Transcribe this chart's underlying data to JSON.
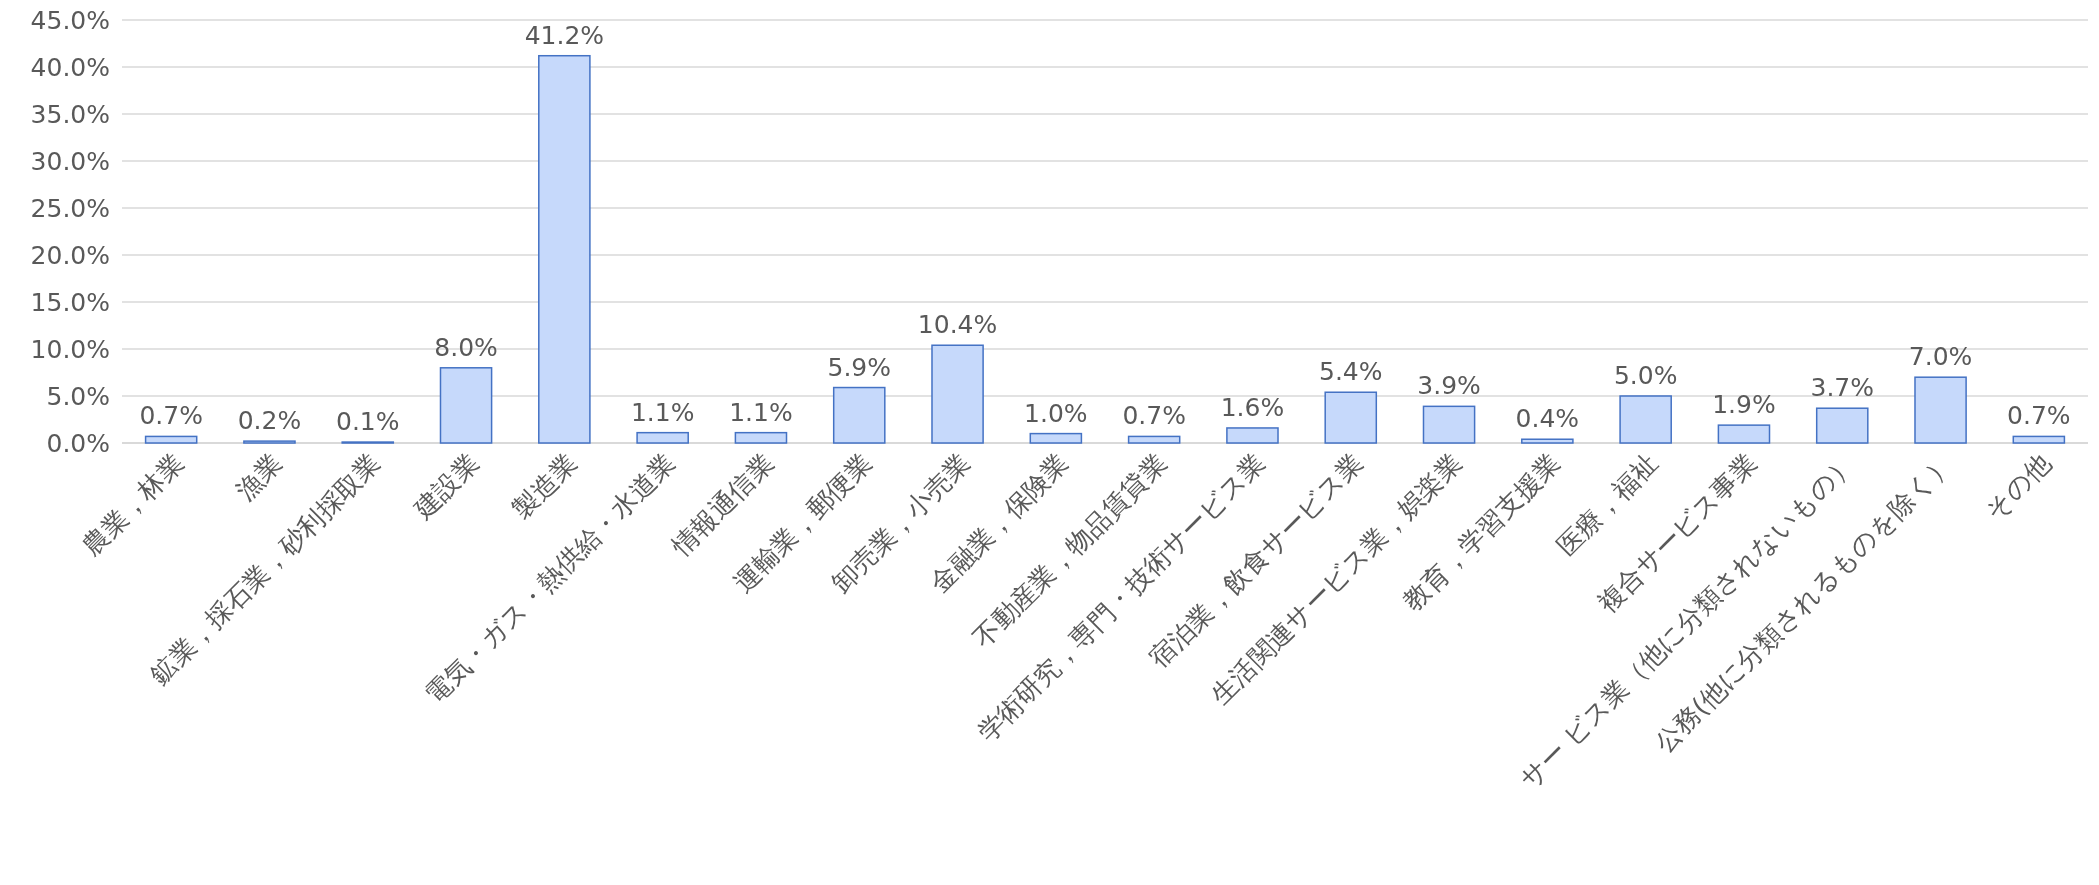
{
  "chart_data": {
    "type": "bar",
    "categories": [
      "農業，林業",
      "漁業",
      "鉱業，採石業，砂利採取業",
      "建設業",
      "製造業",
      "電気・ガス・熱供給・水道業",
      "情報通信業",
      "運輸業，郵便業",
      "卸売業，小売業",
      "金融業，保険業",
      "不動産業，物品賃貸業",
      "学術研究，専門・技術サービス業",
      "宿泊業，飲食サービス業",
      "生活関連サービス業，娯楽業",
      "教育，学習支援業",
      "医療，福祉",
      "複合サービス事業",
      "サー ビス業（他に分類されないもの）",
      "公務(他に分類されるものを除く）",
      "その他"
    ],
    "values": [
      0.7,
      0.2,
      0.1,
      8.0,
      41.2,
      1.1,
      1.1,
      5.9,
      10.4,
      1.0,
      0.7,
      1.6,
      5.4,
      3.9,
      0.4,
      5.0,
      1.9,
      3.7,
      7.0,
      0.7
    ],
    "value_labels": [
      "0.7%",
      "0.2%",
      "0.1%",
      "8.0%",
      "41.2%",
      "1.1%",
      "1.1%",
      "5.9%",
      "10.4%",
      "1.0%",
      "0.7%",
      "1.6%",
      "5.4%",
      "3.9%",
      "0.4%",
      "5.0%",
      "1.9%",
      "3.7%",
      "7.0%",
      "0.7%"
    ],
    "color": "#c6d9fb",
    "ylim": [
      0,
      45
    ],
    "yticks": [
      {
        "value": 0,
        "label": "0.0%"
      },
      {
        "value": 5,
        "label": "5.0%"
      },
      {
        "value": 10,
        "label": "10.0%"
      },
      {
        "value": 15,
        "label": "15.0%"
      },
      {
        "value": 20,
        "label": "20.0%"
      },
      {
        "value": 25,
        "label": "25.0%"
      },
      {
        "value": 30,
        "label": "30.0%"
      },
      {
        "value": 35,
        "label": "35.0%"
      },
      {
        "value": 40,
        "label": "40.0%"
      },
      {
        "value": 45,
        "label": "45.0%"
      }
    ],
    "grid": "y"
  }
}
